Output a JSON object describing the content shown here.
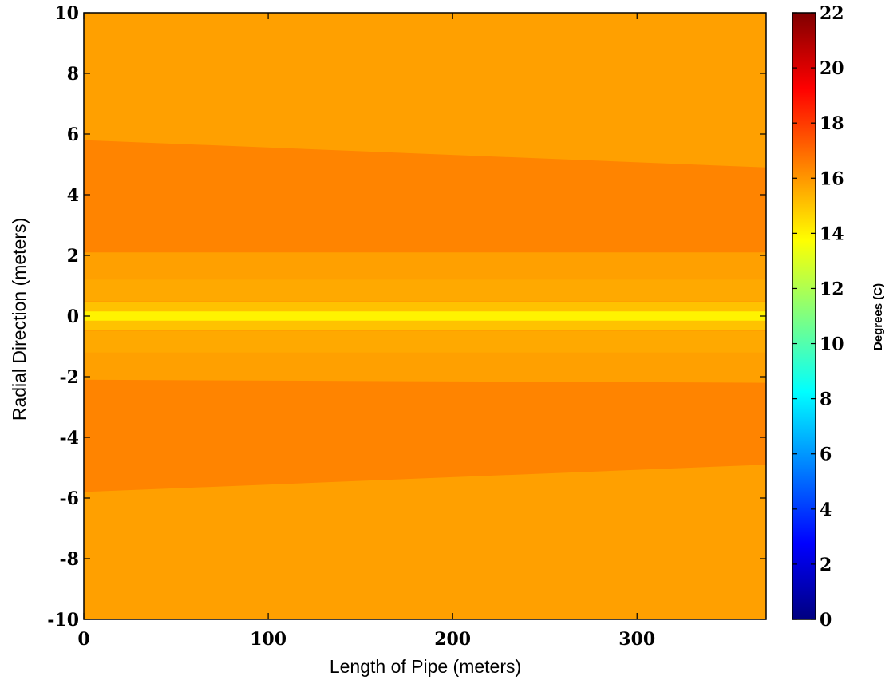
{
  "chart_data": {
    "type": "heatmap",
    "title": "",
    "xlabel": "Length of Pipe (meters)",
    "ylabel": "Radial Direction (meters)",
    "xlim": [
      0,
      370
    ],
    "ylim": [
      -10,
      10
    ],
    "x_ticks": [
      0,
      100,
      200,
      300
    ],
    "x_tick_labels": [
      "0",
      "100",
      "200",
      "300"
    ],
    "y_ticks": [
      10,
      8,
      6,
      4,
      2,
      0,
      -2,
      -4,
      -6,
      -8,
      -10
    ],
    "y_tick_labels": [
      "10",
      "8",
      "6",
      "4",
      "2",
      "0",
      "-2",
      "-4",
      "-6",
      "-8",
      "-10"
    ],
    "grid": false,
    "colorbar": {
      "label": "Degrees (C)",
      "range": [
        0,
        22
      ],
      "colormap": "jet",
      "ticks": [
        22,
        20,
        18,
        16,
        14,
        12,
        10,
        8,
        6,
        4,
        2,
        0
      ],
      "tick_labels": [
        "22",
        "20",
        "18",
        "16",
        "14",
        "12",
        "10",
        "8",
        "6",
        "4",
        "2",
        "0"
      ]
    },
    "base_value": 15.8,
    "regions": [
      {
        "name": "upper-band",
        "value": 16.4,
        "y_top_start": 5.8,
        "y_top_end": 4.9,
        "y_bottom": 2.1
      },
      {
        "name": "lower-band",
        "value": 16.4,
        "y_top_start": -2.1,
        "y_top_end": -2.2,
        "y_bottom_start": -5.8,
        "y_bottom_end": -4.9
      },
      {
        "name": "upper-inner",
        "value": 15.6,
        "y_top": 1.2,
        "y_bottom": 0.5
      },
      {
        "name": "lower-inner",
        "value": 15.6,
        "y_top": -0.5,
        "y_bottom": -1.2
      },
      {
        "name": "center-halo",
        "value": 15.0,
        "y_top": 0.45,
        "y_bottom": -0.45
      },
      {
        "name": "center-line",
        "value": 14.0,
        "y_top": 0.15,
        "y_bottom": -0.15
      }
    ]
  }
}
